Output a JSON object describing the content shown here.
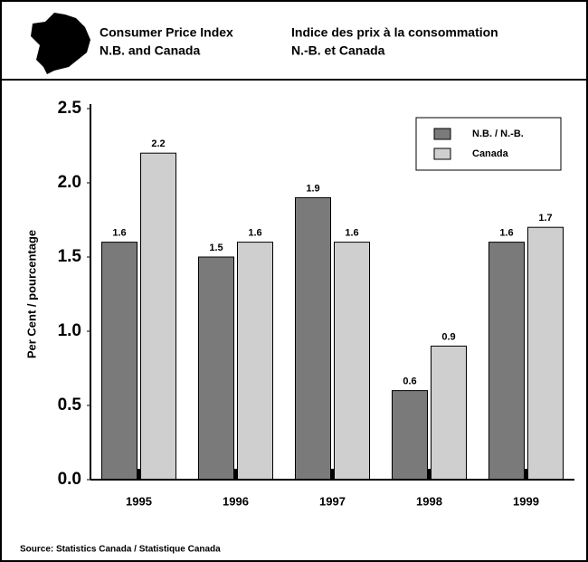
{
  "chart_data": {
    "type": "bar",
    "title": "Consumer Price Index",
    "subtitle": "N.B. and Canada",
    "title_fr": "Indice des prix à la consommation",
    "subtitle_fr": "N.-B. et Canada",
    "y_label": "Per Cent / pourcentage",
    "source": "Source: Statistics Canada / Statistique Canada",
    "categories": [
      "1995",
      "1996",
      "1997",
      "1998",
      "1999"
    ],
    "series": [
      {
        "name": "N.B. / N.-B.",
        "color": "#7a7a7a",
        "values": [
          1.6,
          1.5,
          1.9,
          0.6,
          1.6
        ]
      },
      {
        "name": "Canada",
        "color": "#cfcfcf",
        "values": [
          2.2,
          1.6,
          1.6,
          0.9,
          1.7
        ]
      }
    ],
    "ylim": [
      0,
      2.5
    ],
    "yticks": [
      {
        "value": 0,
        "label": "0.0"
      },
      0.5,
      {
        "value": 1,
        "label": "1.0"
      },
      1.5,
      {
        "value": 2,
        "label": "2.0"
      },
      2.5
    ],
    "legend": "upper right"
  }
}
